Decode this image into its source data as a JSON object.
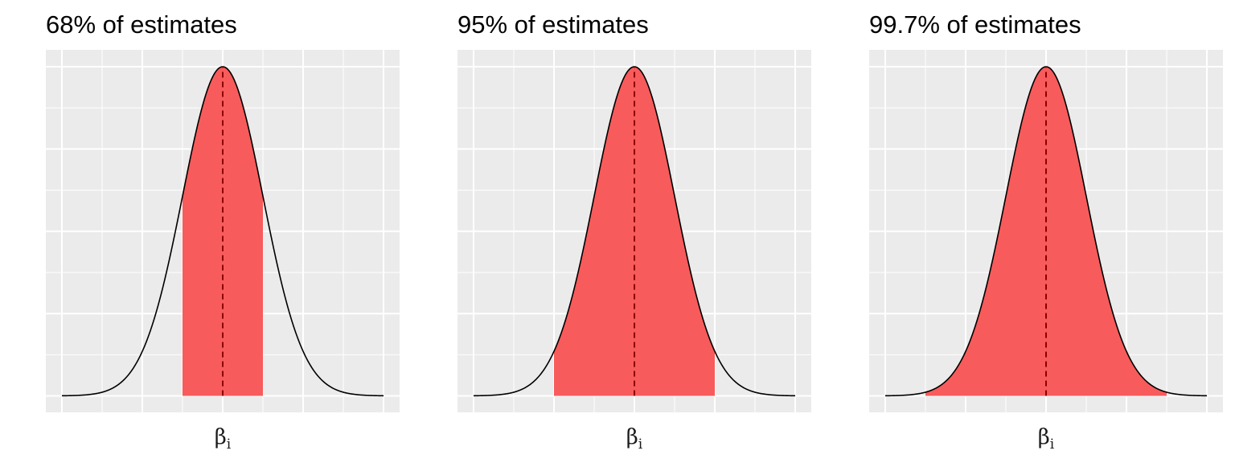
{
  "chart_data": [
    {
      "type": "area",
      "title": "68% of estimates",
      "xlabel": "βi",
      "xlabel_main": "β",
      "xlabel_sub": "i",
      "ylabel": "",
      "distribution": "normal",
      "mean": 0,
      "sd": 1,
      "xlim": [
        -4,
        4
      ],
      "shaded_interval": [
        -1,
        1
      ],
      "shaded_fraction": 0.68,
      "mean_line": "dashed",
      "grid": true
    },
    {
      "type": "area",
      "title": "95% of estimates",
      "xlabel": "βi",
      "xlabel_main": "β",
      "xlabel_sub": "i",
      "ylabel": "",
      "distribution": "normal",
      "mean": 0,
      "sd": 1,
      "xlim": [
        -4,
        4
      ],
      "shaded_interval": [
        -2,
        2
      ],
      "shaded_fraction": 0.95,
      "mean_line": "dashed",
      "grid": true
    },
    {
      "type": "area",
      "title": "99.7% of estimates",
      "xlabel": "βi",
      "xlabel_main": "β",
      "xlabel_sub": "i",
      "ylabel": "",
      "distribution": "normal",
      "mean": 0,
      "sd": 1,
      "xlim": [
        -4,
        4
      ],
      "shaded_interval": [
        -3,
        3
      ],
      "shaded_fraction": 0.997,
      "mean_line": "dashed",
      "grid": true
    }
  ],
  "colors": {
    "panel_background": "#ebebeb",
    "grid": "#ffffff",
    "fill": "#f85b5b",
    "curve": "#000000",
    "mean_line": "#8b0000"
  }
}
